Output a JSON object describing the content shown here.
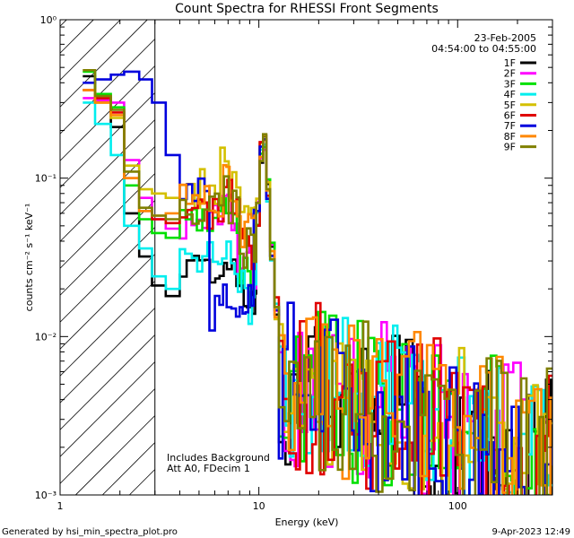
{
  "chart_data": {
    "type": "line",
    "title": "Count Spectra for RHESSI Front Segments",
    "xlabel": "Energy (keV)",
    "ylabel": "counts cm⁻² s⁻¹ keV⁻¹",
    "xscale": "log",
    "yscale": "log",
    "xlim": [
      1,
      300
    ],
    "ylim": [
      0.001,
      1
    ],
    "x_ticks": [
      {
        "value": 1,
        "label": "1"
      },
      {
        "value": 10,
        "label": "10"
      },
      {
        "value": 100,
        "label": "100"
      }
    ],
    "y_ticks": [
      {
        "value": 0.001,
        "label": "10⁻³"
      },
      {
        "value": 0.01,
        "label": "10⁻²"
      },
      {
        "value": 0.1,
        "label": "10⁻¹"
      },
      {
        "value": 1,
        "label": "10⁰"
      }
    ],
    "hatch_region_kev": [
      1,
      3
    ],
    "legend_position": "top-right",
    "date": "23-Feb-2005",
    "time_range": "04:54:00 to 04:55:00",
    "series": [
      {
        "name": "1F",
        "color": "#000000",
        "seed": 1,
        "low": [
          0.44,
          0.31,
          0.21,
          0.06,
          0.032,
          0.021,
          0.018,
          0.025
        ],
        "feature": 0.8
      },
      {
        "name": "2F",
        "color": "#ff00ff",
        "seed": 2,
        "low": [
          0.32,
          0.31,
          0.3,
          0.13,
          0.075,
          0.055,
          0.048,
          0.05
        ],
        "feature": 1.0
      },
      {
        "name": "3F",
        "color": "#00e000",
        "seed": 3,
        "low": [
          0.47,
          0.34,
          0.28,
          0.09,
          0.055,
          0.045,
          0.042,
          0.048
        ],
        "feature": 0.95
      },
      {
        "name": "4F",
        "color": "#00eeee",
        "seed": 4,
        "low": [
          0.3,
          0.22,
          0.14,
          0.05,
          0.036,
          0.024,
          0.02,
          0.03
        ],
        "feature": 0.85
      },
      {
        "name": "5F",
        "color": "#d4c000",
        "seed": 5,
        "low": [
          0.36,
          0.3,
          0.24,
          0.12,
          0.085,
          0.08,
          0.075,
          0.085
        ],
        "feature": 1.15
      },
      {
        "name": "6F",
        "color": "#e00000",
        "seed": 6,
        "low": [
          0.36,
          0.32,
          0.26,
          0.1,
          0.062,
          0.055,
          0.052,
          0.06
        ],
        "feature": 1.05
      },
      {
        "name": "7F",
        "color": "#0000dd",
        "seed": 7,
        "low": [
          0.4,
          0.42,
          0.45,
          0.47,
          0.42,
          0.3,
          0.14,
          0.09
        ],
        "feature": 0.6
      },
      {
        "name": "8F",
        "color": "#ff8800",
        "seed": 8,
        "low": [
          0.36,
          0.3,
          0.25,
          0.1,
          0.062,
          0.058,
          0.06,
          0.07
        ],
        "feature": 1.1
      },
      {
        "name": "9F",
        "color": "#808000",
        "seed": 9,
        "low": [
          0.48,
          0.33,
          0.27,
          0.11,
          0.065,
          0.058,
          0.055,
          0.062
        ],
        "feature": 1.0
      }
    ],
    "annotations": [
      "Includes Background",
      "Att A0, FDecim 1"
    ]
  },
  "footer": {
    "left": "Generated by hsi_min_spectra_plot.pro",
    "right": "9-Apr-2023 12:49"
  }
}
